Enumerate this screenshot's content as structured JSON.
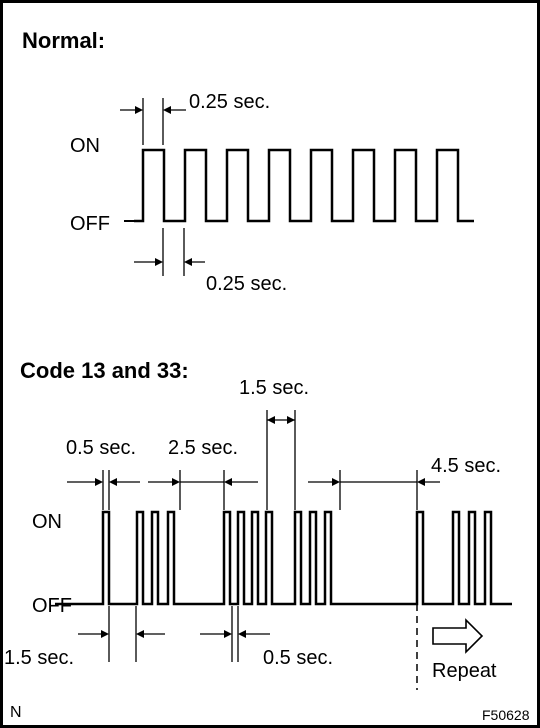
{
  "normal": {
    "heading": "Normal:",
    "on_label": "ON",
    "off_label": "OFF",
    "on_time": "0.25 sec.",
    "off_time": "0.25 sec."
  },
  "code": {
    "heading": "Code 13 and 33:",
    "on_label": "ON",
    "off_label": "OFF",
    "pulse_width": "0.5 sec.",
    "digit_gap": "1.5 sec.",
    "code_gap": "2.5 sec.",
    "repeat_gap": "4.5 sec.",
    "first_pause": "1.5 sec.",
    "pulse_off": "0.5 sec.",
    "repeat_label": "Repeat"
  },
  "footer": {
    "left_mark": "N",
    "figure_id": "F50628"
  }
}
